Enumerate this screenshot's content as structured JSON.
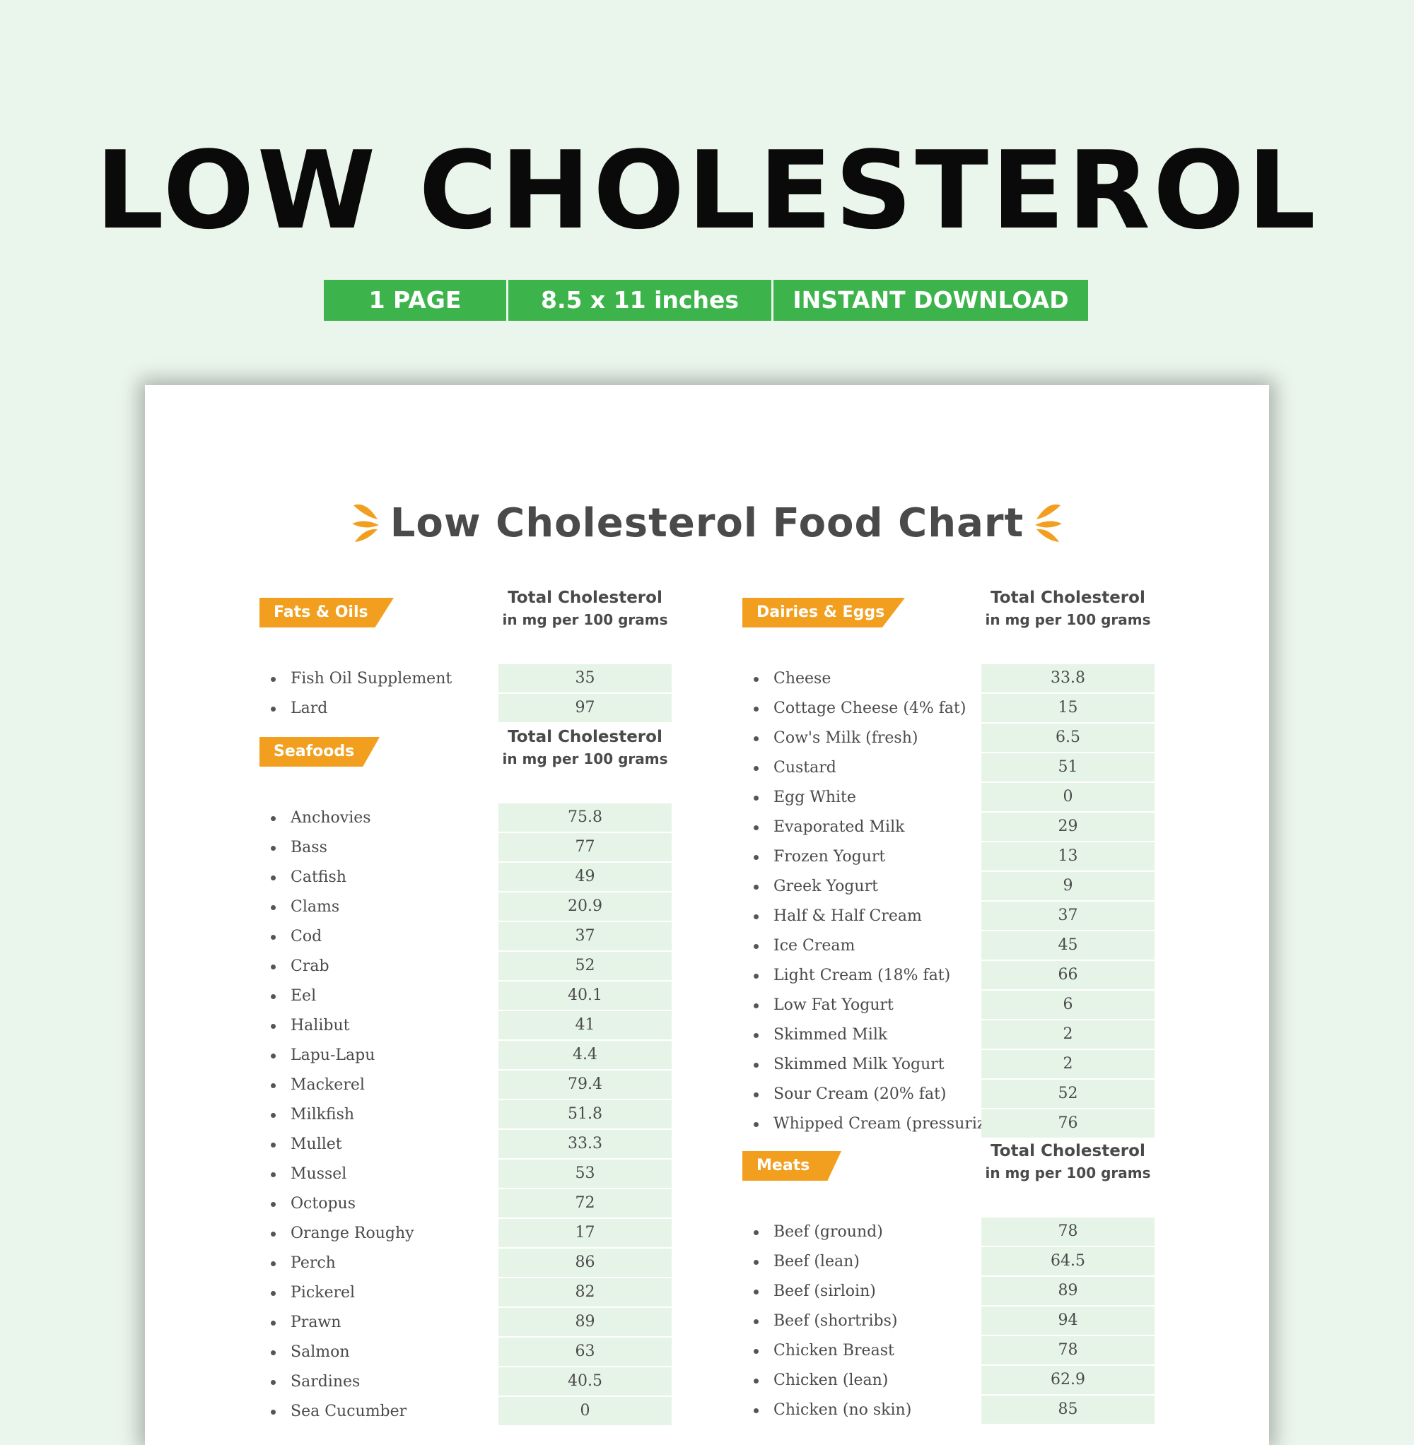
{
  "header": {
    "title": "LOW CHOLESTEROL",
    "badges": [
      "1 PAGE",
      "8.5 x 11 inches",
      "INSTANT DOWNLOAD"
    ]
  },
  "colors": {
    "background": "#eaf5ec",
    "badge_green": "#3cb44b",
    "tag_orange": "#f29f1f",
    "value_cell": "#e6f4e8",
    "text_gray": "#4a4a4a"
  },
  "sheet": {
    "title": "Low Cholesterol Food Chart",
    "column_header_line1": "Total Cholesterol",
    "column_header_line2": "in mg per 100 grams",
    "sections": [
      {
        "name": "Fats & Oils",
        "items": [
          {
            "food": "Fish Oil Supplement",
            "value": "35"
          },
          {
            "food": "Lard",
            "value": "97"
          }
        ]
      },
      {
        "name": "Seafoods",
        "items": [
          {
            "food": "Anchovies",
            "value": "75.8"
          },
          {
            "food": "Bass",
            "value": "77"
          },
          {
            "food": "Catfish",
            "value": "49"
          },
          {
            "food": "Clams",
            "value": "20.9"
          },
          {
            "food": "Cod",
            "value": "37"
          },
          {
            "food": "Crab",
            "value": "52"
          },
          {
            "food": "Eel",
            "value": "40.1"
          },
          {
            "food": "Halibut",
            "value": "41"
          },
          {
            "food": "Lapu-Lapu",
            "value": "4.4"
          },
          {
            "food": "Mackerel",
            "value": "79.4"
          },
          {
            "food": "Milkfish",
            "value": "51.8"
          },
          {
            "food": "Mullet",
            "value": "33.3"
          },
          {
            "food": "Mussel",
            "value": "53"
          },
          {
            "food": "Octopus",
            "value": "72"
          },
          {
            "food": "Orange Roughy",
            "value": "17"
          },
          {
            "food": "Perch",
            "value": "86"
          },
          {
            "food": "Pickerel",
            "value": "82"
          },
          {
            "food": "Prawn",
            "value": "89"
          },
          {
            "food": "Salmon",
            "value": "63"
          },
          {
            "food": "Sardines",
            "value": "40.5"
          },
          {
            "food": "Sea Cucumber",
            "value": "0"
          }
        ]
      },
      {
        "name": "Dairies & Eggs",
        "items": [
          {
            "food": "Cheese",
            "value": "33.8"
          },
          {
            "food": "Cottage Cheese (4% fat)",
            "value": "15"
          },
          {
            "food": "Cow's Milk (fresh)",
            "value": "6.5"
          },
          {
            "food": "Custard",
            "value": "51"
          },
          {
            "food": "Egg White",
            "value": "0"
          },
          {
            "food": "Evaporated Milk",
            "value": "29"
          },
          {
            "food": "Frozen Yogurt",
            "value": "13"
          },
          {
            "food": "Greek Yogurt",
            "value": "9"
          },
          {
            "food": "Half & Half Cream",
            "value": "37"
          },
          {
            "food": "Ice Cream",
            "value": "45"
          },
          {
            "food": "Light Cream (18% fat)",
            "value": "66"
          },
          {
            "food": "Low Fat Yogurt",
            "value": "6"
          },
          {
            "food": "Skimmed Milk",
            "value": "2"
          },
          {
            "food": "Skimmed Milk Yogurt",
            "value": "2"
          },
          {
            "food": "Sour Cream (20% fat)",
            "value": "52"
          },
          {
            "food": "Whipped Cream (pressurized)",
            "value": "76"
          }
        ]
      },
      {
        "name": "Meats",
        "items": [
          {
            "food": "Beef (ground)",
            "value": "78"
          },
          {
            "food": "Beef (lean)",
            "value": "64.5"
          },
          {
            "food": "Beef (sirloin)",
            "value": "89"
          },
          {
            "food": "Beef (shortribs)",
            "value": "94"
          },
          {
            "food": "Chicken Breast",
            "value": "78"
          },
          {
            "food": "Chicken (lean)",
            "value": "62.9"
          },
          {
            "food": "Chicken (no skin)",
            "value": "85"
          }
        ]
      }
    ]
  }
}
